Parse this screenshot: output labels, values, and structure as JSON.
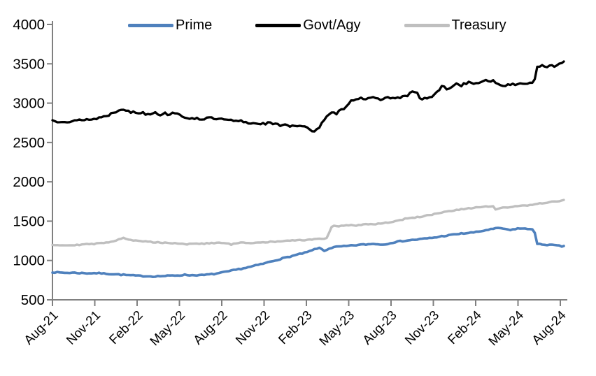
{
  "chart_data": {
    "type": "line",
    "title": "",
    "xlabel": "",
    "ylabel": "",
    "legend_position": "top",
    "grid": false,
    "background_color": "#ffffff",
    "axis_color": "#808080",
    "text_color": "#000000",
    "y_axis": {
      "min": 500,
      "max": 4000,
      "tick_step": 500,
      "tick_labels": [
        "500",
        "1000",
        "1500",
        "2000",
        "2500",
        "3000",
        "3500",
        "4000"
      ]
    },
    "x_axis": {
      "months_per_tick": 3,
      "tick_labels": [
        "Aug-21",
        "Nov-21",
        "Feb-22",
        "May-22",
        "Aug-22",
        "Nov-22",
        "Feb-23",
        "May-23",
        "Aug-23",
        "Nov-23",
        "Feb-24",
        "May-24",
        "Aug-24"
      ]
    },
    "series": [
      {
        "name": "Prime",
        "color": "#4F81BD",
        "line_width": 3.6,
        "jitter": 7,
        "seed": 7,
        "points": [
          [
            0,
            852
          ],
          [
            0.5,
            846
          ],
          [
            1,
            843
          ],
          [
            1.5,
            845
          ],
          [
            2,
            840
          ],
          [
            2.5,
            838
          ],
          [
            3,
            840
          ],
          [
            3.5,
            836
          ],
          [
            4,
            830
          ],
          [
            4.5,
            825
          ],
          [
            5,
            818
          ],
          [
            5.5,
            812
          ],
          [
            6,
            806
          ],
          [
            6.5,
            802
          ],
          [
            7,
            798
          ],
          [
            7.5,
            800
          ],
          [
            8,
            803
          ],
          [
            8.5,
            808
          ],
          [
            9,
            812
          ],
          [
            9.4,
            818
          ],
          [
            9.8,
            812
          ],
          [
            10.2,
            815
          ],
          [
            10.6,
            813
          ],
          [
            11,
            820
          ],
          [
            11.5,
            830
          ],
          [
            12,
            845
          ],
          [
            12.5,
            862
          ],
          [
            13,
            882
          ],
          [
            13.5,
            900
          ],
          [
            14,
            918
          ],
          [
            14.5,
            940
          ],
          [
            15,
            962
          ],
          [
            15.5,
            988
          ],
          [
            16,
            1012
          ],
          [
            16.5,
            1035
          ],
          [
            17,
            1058
          ],
          [
            17.5,
            1080
          ],
          [
            18,
            1102
          ],
          [
            18.4,
            1128
          ],
          [
            18.8,
            1158
          ],
          [
            19.05,
            1152
          ],
          [
            19.25,
            1118
          ],
          [
            19.5,
            1145
          ],
          [
            19.8,
            1162
          ],
          [
            20.1,
            1172
          ],
          [
            20.5,
            1178
          ],
          [
            21,
            1185
          ],
          [
            21.5,
            1195
          ],
          [
            22,
            1202
          ],
          [
            22.5,
            1208
          ],
          [
            23,
            1212
          ],
          [
            23.35,
            1198
          ],
          [
            23.7,
            1212
          ],
          [
            24,
            1225
          ],
          [
            24.4,
            1238
          ],
          [
            24.8,
            1248
          ],
          [
            25.2,
            1255
          ],
          [
            25.6,
            1262
          ],
          [
            26,
            1270
          ],
          [
            26.4,
            1278
          ],
          [
            26.8,
            1285
          ],
          [
            27.2,
            1295
          ],
          [
            27.6,
            1308
          ],
          [
            28,
            1318
          ],
          [
            28.4,
            1328
          ],
          [
            28.8,
            1338
          ],
          [
            29.2,
            1345
          ],
          [
            29.6,
            1352
          ],
          [
            30,
            1360
          ],
          [
            30.4,
            1372
          ],
          [
            30.8,
            1388
          ],
          [
            31.2,
            1400
          ],
          [
            31.5,
            1408
          ],
          [
            31.8,
            1412
          ],
          [
            32.1,
            1398
          ],
          [
            32.4,
            1382
          ],
          [
            32.7,
            1398
          ],
          [
            33,
            1408
          ],
          [
            33.3,
            1405
          ],
          [
            33.6,
            1400
          ],
          [
            33.9,
            1402
          ],
          [
            34.15,
            1400
          ],
          [
            34.3,
            1208
          ],
          [
            34.6,
            1205
          ],
          [
            34.9,
            1202
          ],
          [
            35.2,
            1198
          ],
          [
            35.5,
            1195
          ],
          [
            35.8,
            1188
          ],
          [
            36.1,
            1180
          ],
          [
            36.25,
            1178
          ]
        ]
      },
      {
        "name": "Govt/Agy",
        "color": "#000000",
        "line_width": 3.3,
        "jitter": 15,
        "seed": 13,
        "points": [
          [
            0,
            2780
          ],
          [
            0.4,
            2768
          ],
          [
            0.8,
            2776
          ],
          [
            1.2,
            2762
          ],
          [
            1.6,
            2772
          ],
          [
            2,
            2788
          ],
          [
            2.4,
            2796
          ],
          [
            2.8,
            2788
          ],
          [
            3.2,
            2812
          ],
          [
            3.6,
            2826
          ],
          [
            4,
            2852
          ],
          [
            4.4,
            2886
          ],
          [
            4.7,
            2912
          ],
          [
            4.95,
            2938
          ],
          [
            5.2,
            2912
          ],
          [
            5.5,
            2878
          ],
          [
            5.8,
            2892
          ],
          [
            6.1,
            2872
          ],
          [
            6.4,
            2882
          ],
          [
            6.7,
            2858
          ],
          [
            7,
            2872
          ],
          [
            7.3,
            2888
          ],
          [
            7.6,
            2852
          ],
          [
            7.9,
            2872
          ],
          [
            8.2,
            2858
          ],
          [
            8.5,
            2872
          ],
          [
            8.8,
            2886
          ],
          [
            9.05,
            2858
          ],
          [
            9.25,
            2802
          ],
          [
            9.5,
            2798
          ],
          [
            9.8,
            2816
          ],
          [
            10.2,
            2808
          ],
          [
            10.6,
            2798
          ],
          [
            11,
            2812
          ],
          [
            11.4,
            2802
          ],
          [
            11.8,
            2796
          ],
          [
            12.2,
            2788
          ],
          [
            12.6,
            2778
          ],
          [
            13,
            2768
          ],
          [
            13.4,
            2772
          ],
          [
            13.8,
            2752
          ],
          [
            14.2,
            2742
          ],
          [
            14.6,
            2748
          ],
          [
            15,
            2738
          ],
          [
            15.4,
            2748
          ],
          [
            15.8,
            2728
          ],
          [
            16.2,
            2718
          ],
          [
            16.5,
            2742
          ],
          [
            16.8,
            2702
          ],
          [
            17.1,
            2728
          ],
          [
            17.4,
            2698
          ],
          [
            17.7,
            2712
          ],
          [
            18,
            2682
          ],
          [
            18.3,
            2658
          ],
          [
            18.6,
            2652
          ],
          [
            18.9,
            2692
          ],
          [
            19.2,
            2768
          ],
          [
            19.5,
            2835
          ],
          [
            19.8,
            2872
          ],
          [
            20.1,
            2868
          ],
          [
            20.4,
            2905
          ],
          [
            20.7,
            2942
          ],
          [
            21,
            3005
          ],
          [
            21.3,
            3042
          ],
          [
            21.6,
            3058
          ],
          [
            21.9,
            3075
          ],
          [
            22.2,
            3048
          ],
          [
            22.5,
            3052
          ],
          [
            22.8,
            3068
          ],
          [
            23.1,
            3048
          ],
          [
            23.4,
            3058
          ],
          [
            23.7,
            3068
          ],
          [
            24,
            3072
          ],
          [
            24.3,
            3058
          ],
          [
            24.6,
            3072
          ],
          [
            24.9,
            3082
          ],
          [
            25.2,
            3092
          ],
          [
            25.5,
            3148
          ],
          [
            25.8,
            3152
          ],
          [
            26.05,
            3048
          ],
          [
            26.3,
            3055
          ],
          [
            26.6,
            3065
          ],
          [
            26.9,
            3085
          ],
          [
            27.2,
            3118
          ],
          [
            27.5,
            3195
          ],
          [
            27.7,
            3228
          ],
          [
            27.9,
            3162
          ],
          [
            28.1,
            3178
          ],
          [
            28.4,
            3235
          ],
          [
            28.7,
            3248
          ],
          [
            28.9,
            3215
          ],
          [
            29.2,
            3252
          ],
          [
            29.5,
            3262
          ],
          [
            29.8,
            3238
          ],
          [
            30.1,
            3268
          ],
          [
            30.4,
            3258
          ],
          [
            30.7,
            3282
          ],
          [
            31,
            3272
          ],
          [
            31.2,
            3298
          ],
          [
            31.45,
            3262
          ],
          [
            31.7,
            3222
          ],
          [
            32,
            3232
          ],
          [
            32.3,
            3225
          ],
          [
            32.7,
            3238
          ],
          [
            33.1,
            3245
          ],
          [
            33.5,
            3252
          ],
          [
            33.9,
            3258
          ],
          [
            34.15,
            3268
          ],
          [
            34.3,
            3442
          ],
          [
            34.5,
            3462
          ],
          [
            34.7,
            3472
          ],
          [
            34.9,
            3455
          ],
          [
            35.1,
            3462
          ],
          [
            35.4,
            3472
          ],
          [
            35.7,
            3478
          ],
          [
            35.9,
            3498
          ],
          [
            36.1,
            3515
          ],
          [
            36.25,
            3522
          ]
        ]
      },
      {
        "name": "Treasury",
        "color": "#BFBFBF",
        "line_width": 3.4,
        "jitter": 7,
        "seed": 29,
        "points": [
          [
            0,
            1202
          ],
          [
            0.5,
            1196
          ],
          [
            1,
            1194
          ],
          [
            1.5,
            1198
          ],
          [
            2,
            1202
          ],
          [
            2.5,
            1206
          ],
          [
            3,
            1212
          ],
          [
            3.5,
            1220
          ],
          [
            4,
            1235
          ],
          [
            4.4,
            1252
          ],
          [
            4.8,
            1275
          ],
          [
            5.05,
            1292
          ],
          [
            5.3,
            1272
          ],
          [
            5.6,
            1258
          ],
          [
            6,
            1248
          ],
          [
            6.5,
            1242
          ],
          [
            7,
            1236
          ],
          [
            7.5,
            1230
          ],
          [
            8,
            1226
          ],
          [
            8.5,
            1222
          ],
          [
            9,
            1218
          ],
          [
            9.4,
            1206
          ],
          [
            9.8,
            1212
          ],
          [
            10.2,
            1216
          ],
          [
            10.6,
            1212
          ],
          [
            11,
            1217
          ],
          [
            11.5,
            1221
          ],
          [
            12,
            1224
          ],
          [
            12.4,
            1217
          ],
          [
            12.65,
            1200
          ],
          [
            12.9,
            1220
          ],
          [
            13.3,
            1225
          ],
          [
            13.7,
            1222
          ],
          [
            14.1,
            1226
          ],
          [
            14.5,
            1228
          ],
          [
            15,
            1231
          ],
          [
            15.5,
            1236
          ],
          [
            16,
            1242
          ],
          [
            16.5,
            1247
          ],
          [
            17,
            1252
          ],
          [
            17.5,
            1257
          ],
          [
            18,
            1262
          ],
          [
            18.5,
            1268
          ],
          [
            19,
            1274
          ],
          [
            19.3,
            1280
          ],
          [
            19.5,
            1288
          ],
          [
            19.75,
            1428
          ],
          [
            20,
            1445
          ],
          [
            20.3,
            1435
          ],
          [
            20.7,
            1448
          ],
          [
            21,
            1448
          ],
          [
            21.4,
            1442
          ],
          [
            21.8,
            1455
          ],
          [
            22.2,
            1462
          ],
          [
            22.6,
            1458
          ],
          [
            23,
            1468
          ],
          [
            23.4,
            1475
          ],
          [
            23.8,
            1482
          ],
          [
            24.2,
            1495
          ],
          [
            24.6,
            1512
          ],
          [
            25,
            1528
          ],
          [
            25.4,
            1540
          ],
          [
            25.8,
            1550
          ],
          [
            26.2,
            1560
          ],
          [
            26.6,
            1572
          ],
          [
            27,
            1585
          ],
          [
            27.4,
            1600
          ],
          [
            27.8,
            1615
          ],
          [
            28.2,
            1628
          ],
          [
            28.6,
            1638
          ],
          [
            29,
            1648
          ],
          [
            29.4,
            1658
          ],
          [
            29.8,
            1670
          ],
          [
            30.2,
            1678
          ],
          [
            30.6,
            1688
          ],
          [
            31,
            1672
          ],
          [
            31.2,
            1702
          ],
          [
            31.45,
            1638
          ],
          [
            31.7,
            1662
          ],
          [
            32,
            1672
          ],
          [
            32.4,
            1678
          ],
          [
            32.8,
            1684
          ],
          [
            33.2,
            1692
          ],
          [
            33.6,
            1702
          ],
          [
            34,
            1712
          ],
          [
            34.4,
            1722
          ],
          [
            34.8,
            1730
          ],
          [
            35.2,
            1738
          ],
          [
            35.6,
            1748
          ],
          [
            35.9,
            1756
          ],
          [
            36.25,
            1764
          ]
        ]
      }
    ]
  }
}
